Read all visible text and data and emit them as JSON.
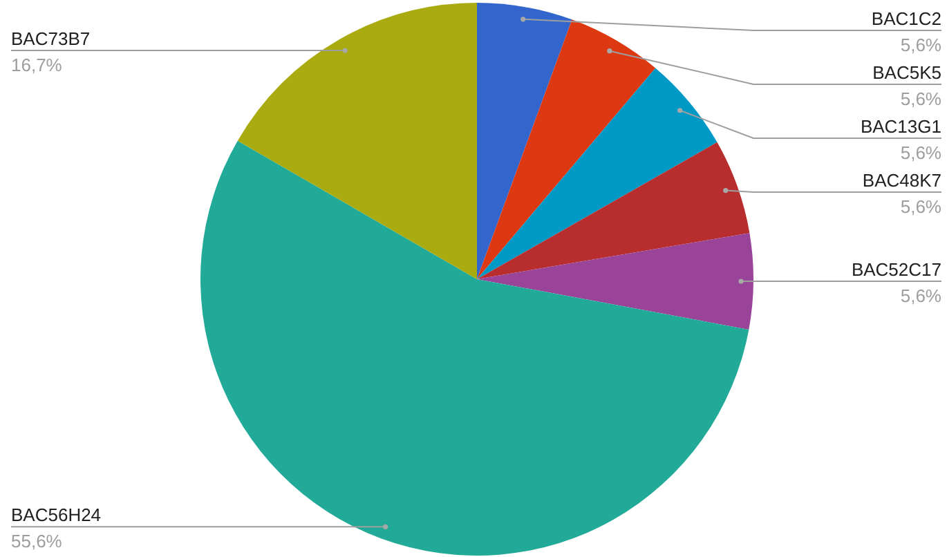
{
  "chart_data": {
    "type": "pie",
    "categories": [
      "BAC1C2",
      "BAC5K5",
      "BAC13G1",
      "BAC48K7",
      "BAC52C17",
      "BAC56H24",
      "BAC73B7"
    ],
    "values": [
      5.6,
      5.6,
      5.6,
      5.6,
      5.6,
      55.6,
      16.7
    ],
    "colors": [
      "#3366cc",
      "#dc3912",
      "#0099c6",
      "#b82e2e",
      "#994499",
      "#22aa99",
      "#aaaa11"
    ],
    "value_labels": [
      "5,6%",
      "5,6%",
      "5,6%",
      "5,6%",
      "5,6%",
      "55,6%",
      "16,7%"
    ]
  }
}
